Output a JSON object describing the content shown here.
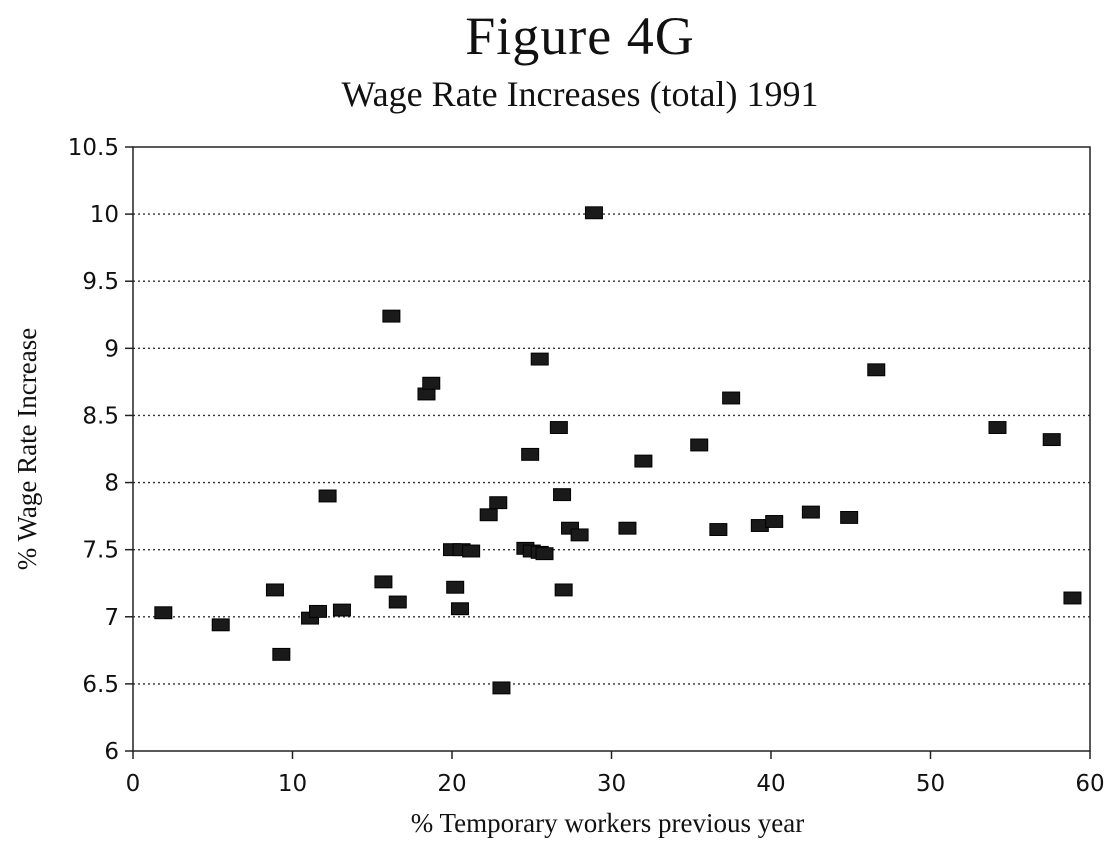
{
  "header": {
    "title": "Figure 4G",
    "subtitle": "Wage Rate Increases (total) 1991"
  },
  "chart_data": {
    "type": "scatter",
    "title": "Figure 4G",
    "subtitle": "Wage Rate Increases (total) 1991",
    "xlabel": "% Temporary workers previous year",
    "ylabel": "% Wage Rate Increase",
    "xlim": [
      0,
      60
    ],
    "ylim": [
      6,
      10.5
    ],
    "xticks": [
      0,
      10,
      20,
      30,
      40,
      50,
      60
    ],
    "yticks": [
      6,
      6.5,
      7,
      7.5,
      8,
      8.5,
      9,
      9.5,
      10,
      10.5
    ],
    "ytick_labels": [
      "6",
      "6.5",
      "7",
      "7.5",
      "8",
      "8.5",
      "9",
      "9.5",
      "10",
      "10.5"
    ],
    "grid": "horizontal dotted",
    "marker": "square",
    "marker_color": "#1a1a1a",
    "points": [
      {
        "x": 1.9,
        "y": 7.03
      },
      {
        "x": 5.5,
        "y": 6.94
      },
      {
        "x": 8.9,
        "y": 7.2
      },
      {
        "x": 9.3,
        "y": 6.72
      },
      {
        "x": 11.1,
        "y": 6.99
      },
      {
        "x": 11.6,
        "y": 7.04
      },
      {
        "x": 12.2,
        "y": 7.9
      },
      {
        "x": 13.1,
        "y": 7.05
      },
      {
        "x": 15.7,
        "y": 7.26
      },
      {
        "x": 16.2,
        "y": 9.24
      },
      {
        "x": 16.6,
        "y": 7.11
      },
      {
        "x": 18.4,
        "y": 8.66
      },
      {
        "x": 18.7,
        "y": 8.74
      },
      {
        "x": 20.0,
        "y": 7.5
      },
      {
        "x": 20.2,
        "y": 7.22
      },
      {
        "x": 20.5,
        "y": 7.06
      },
      {
        "x": 20.6,
        "y": 7.5
      },
      {
        "x": 21.2,
        "y": 7.49
      },
      {
        "x": 22.3,
        "y": 7.76
      },
      {
        "x": 22.9,
        "y": 7.85
      },
      {
        "x": 23.1,
        "y": 6.47
      },
      {
        "x": 24.6,
        "y": 7.51
      },
      {
        "x": 24.9,
        "y": 8.21
      },
      {
        "x": 25.0,
        "y": 7.49
      },
      {
        "x": 25.5,
        "y": 7.48
      },
      {
        "x": 25.5,
        "y": 8.92
      },
      {
        "x": 25.8,
        "y": 7.47
      },
      {
        "x": 26.7,
        "y": 8.41
      },
      {
        "x": 26.9,
        "y": 7.91
      },
      {
        "x": 27.0,
        "y": 7.2
      },
      {
        "x": 27.4,
        "y": 7.66
      },
      {
        "x": 28.0,
        "y": 7.61
      },
      {
        "x": 28.9,
        "y": 10.01
      },
      {
        "x": 31.0,
        "y": 7.66
      },
      {
        "x": 32.0,
        "y": 8.16
      },
      {
        "x": 35.5,
        "y": 8.28
      },
      {
        "x": 36.7,
        "y": 7.65
      },
      {
        "x": 37.5,
        "y": 8.63
      },
      {
        "x": 39.3,
        "y": 7.68
      },
      {
        "x": 40.2,
        "y": 7.71
      },
      {
        "x": 42.5,
        "y": 7.78
      },
      {
        "x": 44.9,
        "y": 7.74
      },
      {
        "x": 46.6,
        "y": 8.84
      },
      {
        "x": 54.2,
        "y": 8.41
      },
      {
        "x": 57.6,
        "y": 8.32
      },
      {
        "x": 58.9,
        "y": 7.14
      }
    ]
  }
}
